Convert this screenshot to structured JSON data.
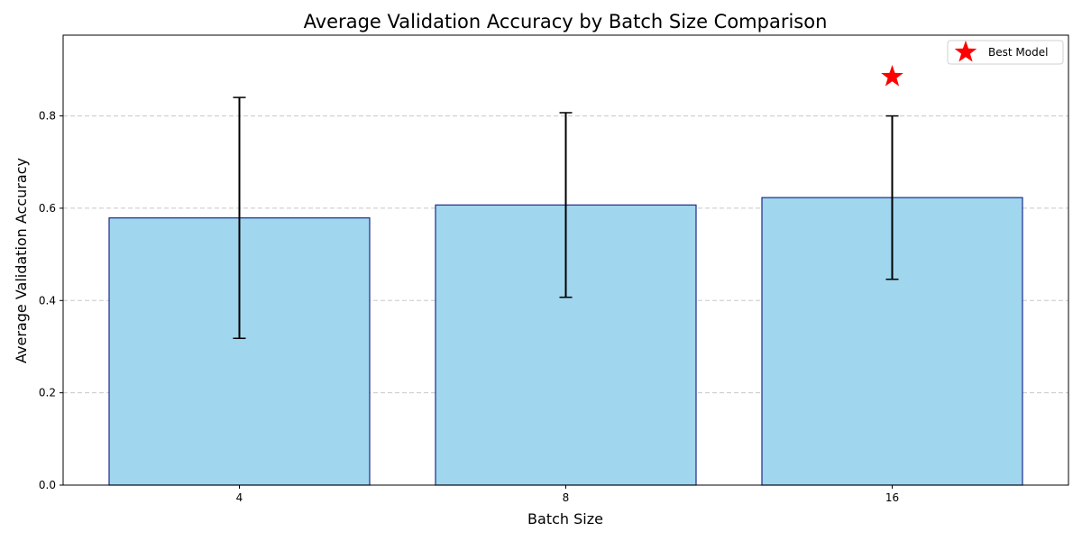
{
  "chart_data": {
    "type": "bar",
    "title": "Average Validation Accuracy by Batch Size Comparison",
    "xlabel": "Batch Size",
    "ylabel": "Average Validation Accuracy",
    "categories": [
      "4",
      "8",
      "16"
    ],
    "values": [
      0.579,
      0.607,
      0.623
    ],
    "error": [
      0.261,
      0.2,
      0.177
    ],
    "ylim": [
      0,
      0.975
    ],
    "yticks": [
      0.0,
      0.2,
      0.4,
      0.6,
      0.8
    ],
    "ytick_labels": [
      "0.0",
      "0.2",
      "0.4",
      "0.6",
      "0.8"
    ],
    "grid": "y-dashed",
    "bar_color": "#a0d6ee",
    "bar_edge_color": "#1c2a8a",
    "best_marker": {
      "category": "16",
      "y": 0.885,
      "color": "#ff0000"
    },
    "legend": {
      "placement": "top-right",
      "entries": [
        {
          "label": "Best Model",
          "marker": "star-icon",
          "color": "#ff0000"
        }
      ]
    }
  }
}
